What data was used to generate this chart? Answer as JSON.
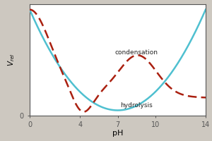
{
  "title": "",
  "xlabel": "pH",
  "ylabel": "V_rel",
  "xlim": [
    0,
    14
  ],
  "ylim": [
    0,
    1.05
  ],
  "xticks": [
    0,
    4,
    7,
    10,
    14
  ],
  "background_color": "#cdc8c0",
  "plot_background": "#ffffff",
  "hydrolysis_color": "#4fc0d0",
  "condensation_color": "#aa2010",
  "hydrolysis_label": "hydrolysis",
  "condensation_label": "condensation",
  "hydrolysis_lw": 1.8,
  "condensation_lw": 1.8
}
